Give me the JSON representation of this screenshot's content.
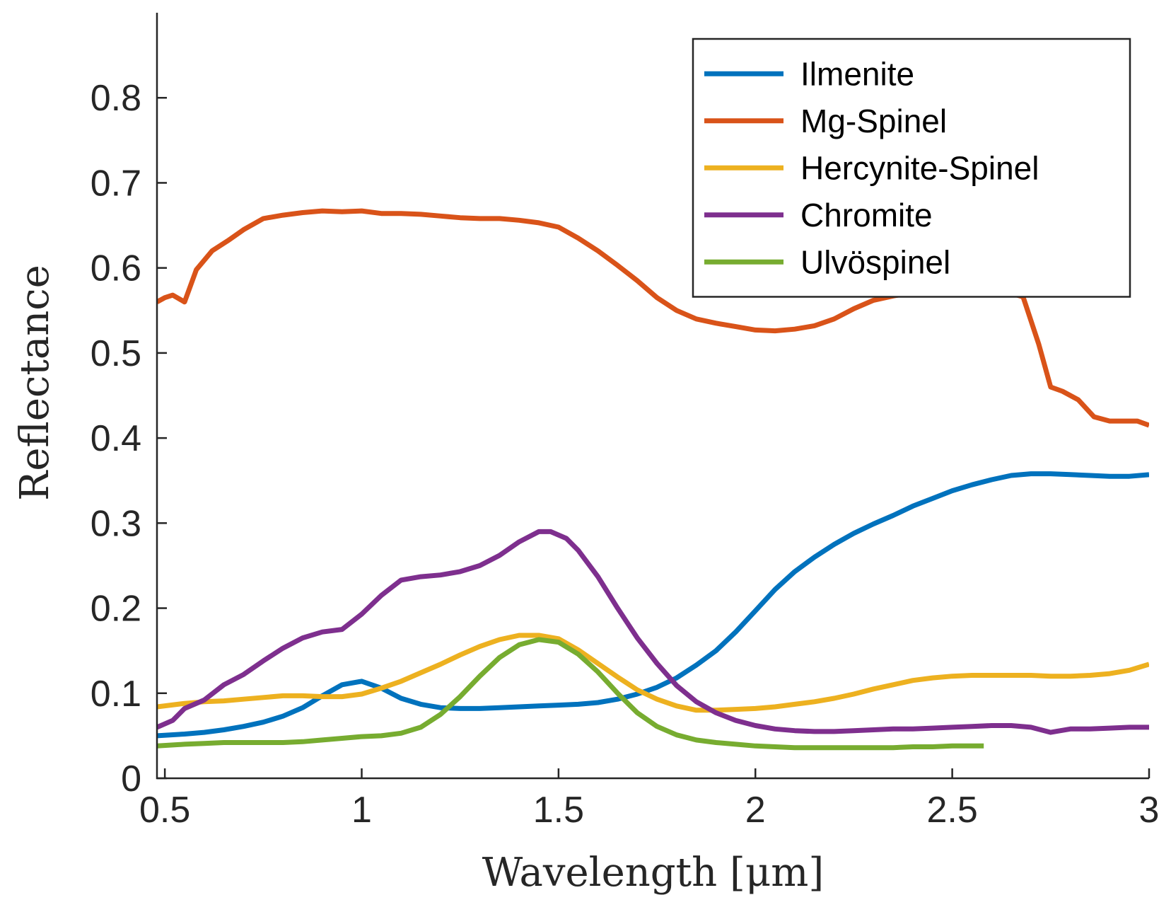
{
  "chart_data": {
    "type": "line",
    "title": "",
    "xlabel": "Wavelength [μm]",
    "ylabel": "Reflectance",
    "xlim": [
      0.48,
      3.0
    ],
    "ylim": [
      0,
      0.9
    ],
    "grid": false,
    "legend_position": "top-right",
    "x_ticks": [
      0.5,
      1,
      1.5,
      2,
      2.5,
      3
    ],
    "x_tick_labels": [
      "0.5",
      "1",
      "1.5",
      "2",
      "2.5",
      "3"
    ],
    "y_ticks": [
      0,
      0.1,
      0.2,
      0.3,
      0.4,
      0.5,
      0.6,
      0.7,
      0.8
    ],
    "y_tick_labels": [
      "0",
      "0.1",
      "0.2",
      "0.3",
      "0.4",
      "0.5",
      "0.6",
      "0.7",
      "0.8"
    ],
    "series": [
      {
        "name": "Ilmenite",
        "color": "#0072BD",
        "x": [
          0.48,
          0.55,
          0.6,
          0.65,
          0.7,
          0.75,
          0.8,
          0.85,
          0.9,
          0.95,
          1.0,
          1.05,
          1.1,
          1.15,
          1.2,
          1.25,
          1.3,
          1.35,
          1.4,
          1.45,
          1.5,
          1.55,
          1.6,
          1.65,
          1.7,
          1.75,
          1.8,
          1.85,
          1.9,
          1.95,
          2.0,
          2.05,
          2.1,
          2.15,
          2.2,
          2.25,
          2.3,
          2.35,
          2.4,
          2.45,
          2.5,
          2.55,
          2.6,
          2.65,
          2.7,
          2.75,
          2.8,
          2.85,
          2.9,
          2.95,
          3.0
        ],
        "y": [
          0.05,
          0.052,
          0.054,
          0.057,
          0.061,
          0.066,
          0.073,
          0.083,
          0.097,
          0.11,
          0.114,
          0.106,
          0.094,
          0.087,
          0.083,
          0.082,
          0.082,
          0.083,
          0.084,
          0.085,
          0.086,
          0.087,
          0.089,
          0.093,
          0.099,
          0.107,
          0.118,
          0.133,
          0.15,
          0.172,
          0.197,
          0.222,
          0.243,
          0.26,
          0.275,
          0.288,
          0.299,
          0.309,
          0.32,
          0.329,
          0.338,
          0.345,
          0.351,
          0.356,
          0.358,
          0.358,
          0.357,
          0.356,
          0.355,
          0.355,
          0.357
        ]
      },
      {
        "name": "Mg-Spinel",
        "color": "#D95319",
        "x": [
          0.48,
          0.5,
          0.52,
          0.55,
          0.58,
          0.62,
          0.66,
          0.7,
          0.75,
          0.8,
          0.85,
          0.9,
          0.95,
          1.0,
          1.05,
          1.1,
          1.15,
          1.2,
          1.25,
          1.3,
          1.35,
          1.4,
          1.45,
          1.5,
          1.55,
          1.6,
          1.65,
          1.7,
          1.75,
          1.8,
          1.85,
          1.9,
          1.95,
          2.0,
          2.05,
          2.1,
          2.15,
          2.2,
          2.25,
          2.3,
          2.35,
          2.4,
          2.45,
          2.5,
          2.55,
          2.6,
          2.65,
          2.68,
          2.72,
          2.75,
          2.78,
          2.82,
          2.86,
          2.9,
          2.94,
          2.97,
          3.0
        ],
        "y": [
          0.56,
          0.565,
          0.568,
          0.56,
          0.598,
          0.62,
          0.632,
          0.645,
          0.658,
          0.662,
          0.665,
          0.667,
          0.666,
          0.667,
          0.664,
          0.664,
          0.663,
          0.661,
          0.659,
          0.658,
          0.658,
          0.656,
          0.653,
          0.648,
          0.635,
          0.62,
          0.603,
          0.585,
          0.565,
          0.55,
          0.54,
          0.535,
          0.531,
          0.527,
          0.526,
          0.528,
          0.532,
          0.54,
          0.552,
          0.562,
          0.567,
          0.571,
          0.575,
          0.577,
          0.576,
          0.575,
          0.57,
          0.566,
          0.51,
          0.46,
          0.455,
          0.445,
          0.425,
          0.42,
          0.42,
          0.42,
          0.415
        ]
      },
      {
        "name": "Hercynite-Spinel",
        "color": "#EDB120",
        "x": [
          0.48,
          0.55,
          0.6,
          0.65,
          0.7,
          0.75,
          0.8,
          0.85,
          0.9,
          0.95,
          1.0,
          1.05,
          1.1,
          1.15,
          1.2,
          1.25,
          1.3,
          1.35,
          1.4,
          1.45,
          1.5,
          1.55,
          1.6,
          1.65,
          1.7,
          1.75,
          1.8,
          1.85,
          1.9,
          1.95,
          2.0,
          2.05,
          2.1,
          2.15,
          2.2,
          2.25,
          2.3,
          2.35,
          2.4,
          2.45,
          2.5,
          2.55,
          2.6,
          2.65,
          2.7,
          2.75,
          2.8,
          2.85,
          2.9,
          2.95,
          3.0
        ],
        "y": [
          0.084,
          0.088,
          0.09,
          0.091,
          0.093,
          0.095,
          0.097,
          0.097,
          0.096,
          0.096,
          0.099,
          0.106,
          0.114,
          0.124,
          0.134,
          0.145,
          0.155,
          0.163,
          0.168,
          0.168,
          0.164,
          0.151,
          0.135,
          0.119,
          0.104,
          0.093,
          0.085,
          0.08,
          0.08,
          0.081,
          0.082,
          0.084,
          0.087,
          0.09,
          0.094,
          0.099,
          0.105,
          0.11,
          0.115,
          0.118,
          0.12,
          0.121,
          0.121,
          0.121,
          0.121,
          0.12,
          0.12,
          0.121,
          0.123,
          0.127,
          0.134
        ]
      },
      {
        "name": "Chromite",
        "color": "#7E2F8E",
        "x": [
          0.48,
          0.52,
          0.55,
          0.6,
          0.65,
          0.7,
          0.75,
          0.8,
          0.85,
          0.9,
          0.95,
          1.0,
          1.05,
          1.1,
          1.15,
          1.2,
          1.25,
          1.3,
          1.35,
          1.4,
          1.45,
          1.48,
          1.52,
          1.55,
          1.6,
          1.65,
          1.7,
          1.75,
          1.8,
          1.85,
          1.9,
          1.95,
          2.0,
          2.05,
          2.1,
          2.15,
          2.2,
          2.25,
          2.3,
          2.35,
          2.4,
          2.45,
          2.5,
          2.55,
          2.6,
          2.65,
          2.7,
          2.75,
          2.8,
          2.85,
          2.9,
          2.95,
          3.0
        ],
        "y": [
          0.06,
          0.068,
          0.082,
          0.092,
          0.11,
          0.122,
          0.138,
          0.153,
          0.165,
          0.172,
          0.175,
          0.193,
          0.215,
          0.233,
          0.237,
          0.239,
          0.243,
          0.25,
          0.262,
          0.278,
          0.29,
          0.29,
          0.282,
          0.268,
          0.237,
          0.2,
          0.165,
          0.135,
          0.109,
          0.09,
          0.077,
          0.068,
          0.062,
          0.058,
          0.056,
          0.055,
          0.055,
          0.056,
          0.057,
          0.058,
          0.058,
          0.059,
          0.06,
          0.061,
          0.062,
          0.062,
          0.06,
          0.054,
          0.058,
          0.058,
          0.059,
          0.06,
          0.06
        ]
      },
      {
        "name": "Ulvöspinel",
        "color": "#77AC30",
        "x": [
          0.48,
          0.55,
          0.6,
          0.65,
          0.7,
          0.75,
          0.8,
          0.85,
          0.9,
          0.95,
          1.0,
          1.05,
          1.1,
          1.15,
          1.2,
          1.25,
          1.3,
          1.35,
          1.4,
          1.45,
          1.5,
          1.55,
          1.6,
          1.65,
          1.7,
          1.75,
          1.8,
          1.85,
          1.9,
          1.95,
          2.0,
          2.05,
          2.1,
          2.15,
          2.2,
          2.25,
          2.3,
          2.35,
          2.4,
          2.45,
          2.5,
          2.58
        ],
        "y": [
          0.038,
          0.04,
          0.041,
          0.042,
          0.042,
          0.042,
          0.042,
          0.043,
          0.045,
          0.047,
          0.049,
          0.05,
          0.053,
          0.06,
          0.075,
          0.096,
          0.12,
          0.142,
          0.157,
          0.163,
          0.16,
          0.146,
          0.125,
          0.1,
          0.077,
          0.061,
          0.051,
          0.045,
          0.042,
          0.04,
          0.038,
          0.037,
          0.036,
          0.036,
          0.036,
          0.036,
          0.036,
          0.036,
          0.037,
          0.037,
          0.038,
          0.038
        ]
      }
    ]
  }
}
